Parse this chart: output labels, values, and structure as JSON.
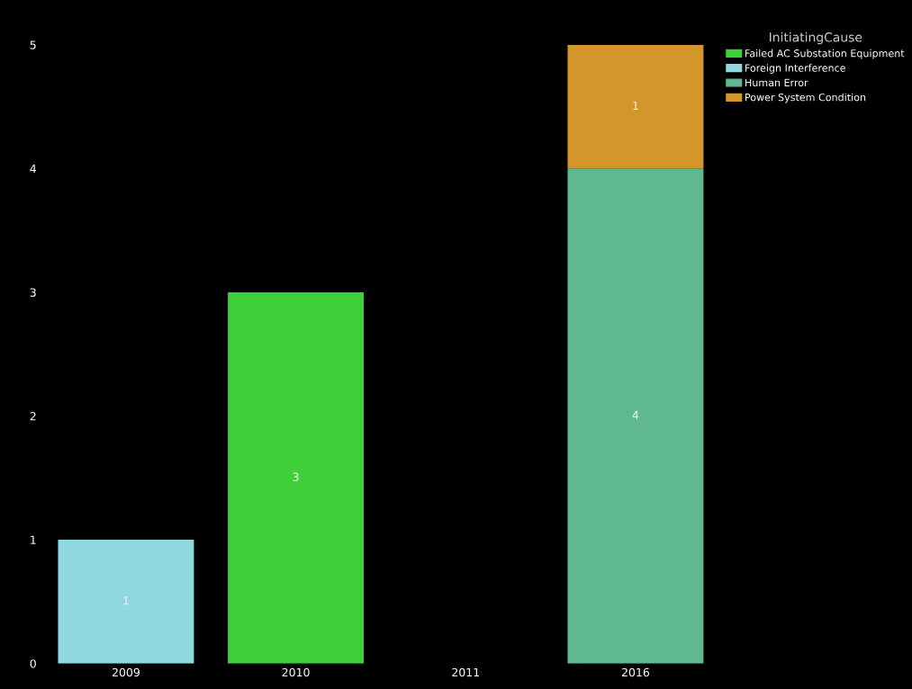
{
  "chart_data": {
    "type": "bar",
    "stacked": true,
    "categories": [
      "2009",
      "2010",
      "2011",
      "2016"
    ],
    "legend_title": "InitiatingCause",
    "legend": "top right",
    "ylim": [
      0,
      5
    ],
    "yticks": [
      0,
      1,
      2,
      3,
      4,
      5
    ],
    "data_labels": true,
    "series": [
      {
        "name": "Failed AC Substation Equipment",
        "color": "#3ecf3a",
        "values": [
          null,
          3,
          null,
          null
        ]
      },
      {
        "name": "Foreign Interference",
        "color": "#8fd8e0",
        "values": [
          1,
          null,
          null,
          null
        ]
      },
      {
        "name": "Human Error",
        "color": "#5fb890",
        "values": [
          null,
          null,
          null,
          4
        ]
      },
      {
        "name": "Power System Condition",
        "color": "#d4952a",
        "values": [
          null,
          null,
          null,
          1
        ]
      }
    ]
  }
}
